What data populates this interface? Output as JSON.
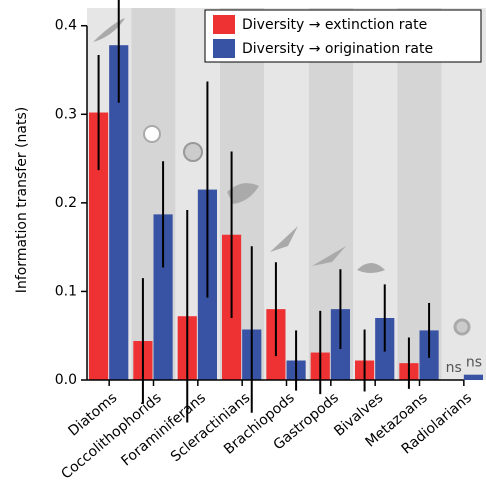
{
  "chart_data": {
    "type": "bar",
    "y_label": "Information transfer (nats)",
    "categories": [
      "Diatoms",
      "Coccolithophorids",
      "Foraminiferans",
      "Scleractinians",
      "Brachiopods",
      "Gastropods",
      "Bivalves",
      "Metazoans",
      "Radiolarians"
    ],
    "series": [
      {
        "name": "Diversity → extinction rate",
        "color": "#ee3133",
        "values": [
          0.302,
          0.044,
          0.072,
          0.164,
          0.08,
          0.031,
          0.022,
          0.019,
          0
        ],
        "errors": [
          0.065,
          0.071,
          0.12,
          0.094,
          0.053,
          0.047,
          0.035,
          0.029,
          null
        ],
        "notes": [
          null,
          null,
          null,
          null,
          null,
          null,
          null,
          null,
          "ns"
        ]
      },
      {
        "name": "Diversity → origination rate",
        "color": "#3953a4",
        "values": [
          0.378,
          0.187,
          0.215,
          0.057,
          0.022,
          0.08,
          0.07,
          0.056,
          0.006
        ],
        "errors": [
          0.065,
          0.06,
          0.122,
          0.094,
          0.034,
          0.045,
          0.038,
          0.031,
          null
        ],
        "notes": [
          null,
          null,
          null,
          null,
          null,
          null,
          null,
          null,
          "ns"
        ]
      }
    ],
    "ylim": [
      0,
      0.42
    ],
    "yticks": [
      {
        "value": 0,
        "label": "0.0"
      },
      0.1,
      0.2,
      0.3,
      0.4
    ],
    "band_colors": [
      "#e6e6e6",
      "#d5d5d5"
    ],
    "legend": "top-right"
  }
}
